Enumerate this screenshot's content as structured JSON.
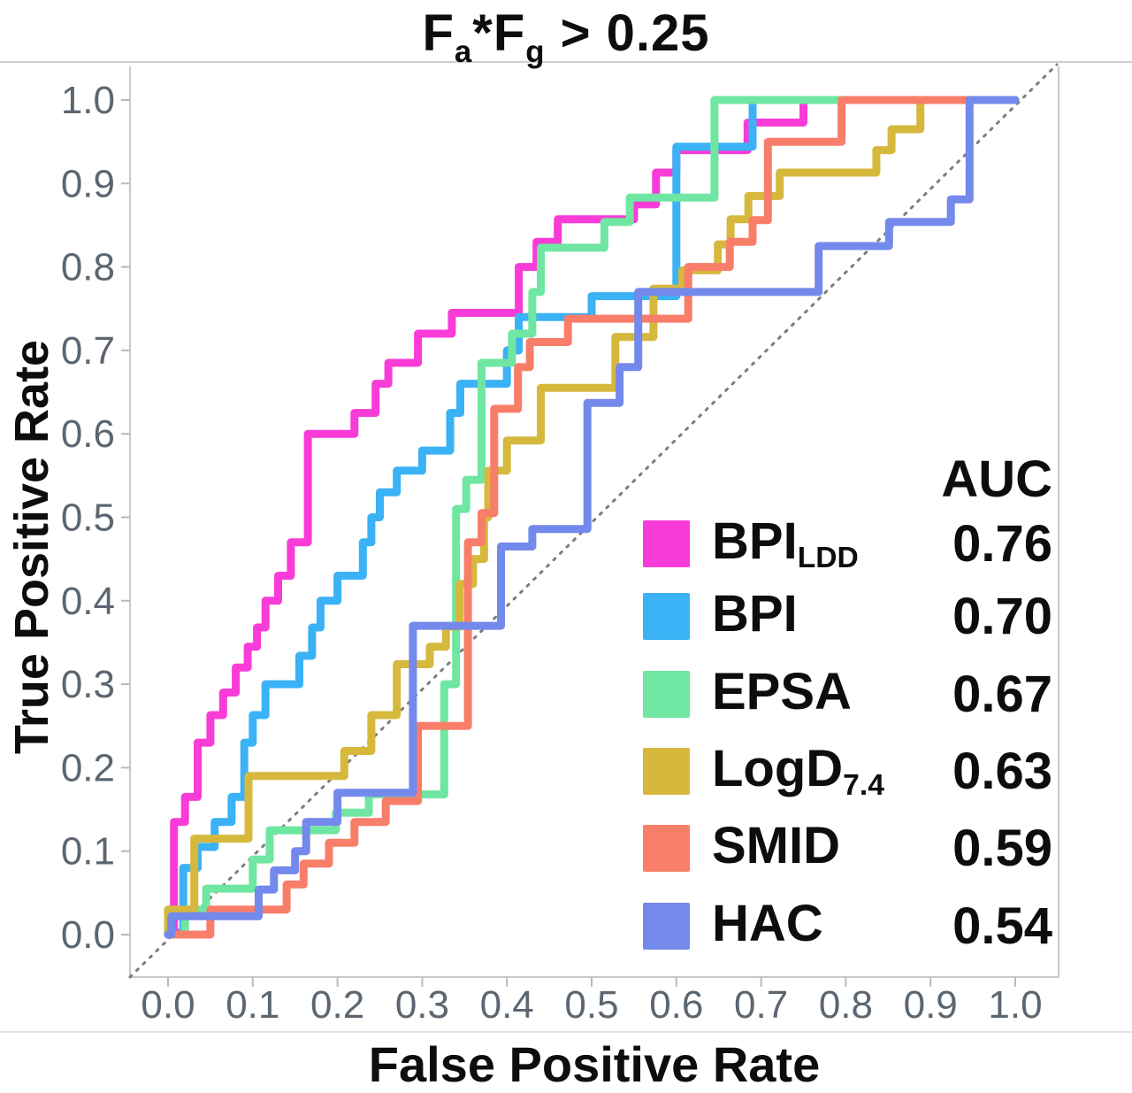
{
  "title_parts": {
    "t1": "F",
    "s1": "a",
    "t2": "*F",
    "s2": "g",
    "t3": " > 0.25"
  },
  "axes": {
    "x_label": "False Positive Rate",
    "y_label": "True Positive Rate"
  },
  "legend": {
    "header": "AUC",
    "entries": [
      {
        "label": "BPI",
        "sub": "LDD",
        "auc": "0.76"
      },
      {
        "label": "BPI",
        "auc": "0.70"
      },
      {
        "label": "EPSA",
        "auc": "0.67"
      },
      {
        "label": "LogD",
        "sub": "7.4",
        "auc": "0.63"
      },
      {
        "label": "SMID",
        "auc": "0.59"
      },
      {
        "label": "HAC",
        "auc": "0.54"
      }
    ]
  },
  "chart_data": {
    "type": "line",
    "subtype": "roc-step-curves",
    "title": "Fa*Fg > 0.25",
    "xlabel": "False Positive Rate",
    "ylabel": "True Positive Rate",
    "xlim": [
      0,
      1
    ],
    "ylim": [
      0,
      1
    ],
    "xticks": [
      "0.0",
      "0.1",
      "0.2",
      "0.3",
      "0.4",
      "0.5",
      "0.6",
      "0.7",
      "0.8",
      "0.9",
      "1.0"
    ],
    "yticks": [
      "0.0",
      "0.1",
      "0.2",
      "0.3",
      "0.4",
      "0.5",
      "0.6",
      "0.7",
      "0.8",
      "0.9",
      "1.0"
    ],
    "grid": false,
    "diagonal_reference": {
      "shown": true,
      "style": "dotted",
      "color": "#7d7d7d"
    },
    "legend_position": "lower right",
    "series": [
      {
        "name": "BPI_LDD",
        "key": "bpi-ldd",
        "auc": 0.76,
        "color": "#f93bd7",
        "points": [
          [
            0,
            0
          ],
          [
            0.007,
            0
          ],
          [
            0.007,
            0.135
          ],
          [
            0.02,
            0.135
          ],
          [
            0.02,
            0.165
          ],
          [
            0.035,
            0.165
          ],
          [
            0.035,
            0.23
          ],
          [
            0.05,
            0.23
          ],
          [
            0.05,
            0.263
          ],
          [
            0.065,
            0.263
          ],
          [
            0.065,
            0.29
          ],
          [
            0.08,
            0.29
          ],
          [
            0.08,
            0.32
          ],
          [
            0.094,
            0.32
          ],
          [
            0.094,
            0.345
          ],
          [
            0.105,
            0.345
          ],
          [
            0.105,
            0.368
          ],
          [
            0.115,
            0.368
          ],
          [
            0.115,
            0.4
          ],
          [
            0.13,
            0.4
          ],
          [
            0.13,
            0.43
          ],
          [
            0.145,
            0.43
          ],
          [
            0.145,
            0.47
          ],
          [
            0.165,
            0.47
          ],
          [
            0.165,
            0.6
          ],
          [
            0.22,
            0.6
          ],
          [
            0.22,
            0.625
          ],
          [
            0.245,
            0.625
          ],
          [
            0.245,
            0.66
          ],
          [
            0.26,
            0.66
          ],
          [
            0.26,
            0.685
          ],
          [
            0.295,
            0.685
          ],
          [
            0.295,
            0.72
          ],
          [
            0.335,
            0.72
          ],
          [
            0.335,
            0.745
          ],
          [
            0.414,
            0.745
          ],
          [
            0.414,
            0.8
          ],
          [
            0.435,
            0.8
          ],
          [
            0.435,
            0.83
          ],
          [
            0.46,
            0.83
          ],
          [
            0.46,
            0.857
          ],
          [
            0.55,
            0.857
          ],
          [
            0.55,
            0.875
          ],
          [
            0.576,
            0.875
          ],
          [
            0.576,
            0.913
          ],
          [
            0.6,
            0.913
          ],
          [
            0.6,
            0.94
          ],
          [
            0.684,
            0.94
          ],
          [
            0.684,
            0.973
          ],
          [
            0.75,
            0.973
          ],
          [
            0.75,
            1
          ],
          [
            1,
            1
          ]
        ]
      },
      {
        "name": "BPI",
        "key": "bpi",
        "auc": 0.7,
        "color": "#3ab2f5",
        "points": [
          [
            0,
            0
          ],
          [
            0.018,
            0
          ],
          [
            0.018,
            0.08
          ],
          [
            0.035,
            0.08
          ],
          [
            0.035,
            0.105
          ],
          [
            0.055,
            0.105
          ],
          [
            0.055,
            0.135
          ],
          [
            0.075,
            0.135
          ],
          [
            0.075,
            0.165
          ],
          [
            0.09,
            0.165
          ],
          [
            0.09,
            0.23
          ],
          [
            0.1,
            0.23
          ],
          [
            0.1,
            0.263
          ],
          [
            0.115,
            0.263
          ],
          [
            0.115,
            0.3
          ],
          [
            0.155,
            0.3
          ],
          [
            0.155,
            0.334
          ],
          [
            0.17,
            0.334
          ],
          [
            0.17,
            0.368
          ],
          [
            0.18,
            0.368
          ],
          [
            0.18,
            0.4
          ],
          [
            0.2,
            0.4
          ],
          [
            0.2,
            0.43
          ],
          [
            0.23,
            0.43
          ],
          [
            0.23,
            0.47
          ],
          [
            0.24,
            0.47
          ],
          [
            0.24,
            0.5
          ],
          [
            0.25,
            0.5
          ],
          [
            0.25,
            0.53
          ],
          [
            0.27,
            0.53
          ],
          [
            0.27,
            0.556
          ],
          [
            0.3,
            0.556
          ],
          [
            0.3,
            0.58
          ],
          [
            0.333,
            0.58
          ],
          [
            0.333,
            0.625
          ],
          [
            0.345,
            0.625
          ],
          [
            0.345,
            0.66
          ],
          [
            0.4,
            0.66
          ],
          [
            0.4,
            0.7
          ],
          [
            0.414,
            0.7
          ],
          [
            0.414,
            0.74
          ],
          [
            0.5,
            0.74
          ],
          [
            0.5,
            0.765
          ],
          [
            0.6,
            0.765
          ],
          [
            0.6,
            0.944
          ],
          [
            0.69,
            0.944
          ],
          [
            0.69,
            1
          ],
          [
            1,
            1
          ]
        ]
      },
      {
        "name": "EPSA",
        "key": "epsa",
        "auc": 0.67,
        "color": "#6fe6a1",
        "points": [
          [
            0,
            0
          ],
          [
            0.02,
            0
          ],
          [
            0.02,
            0.03
          ],
          [
            0.045,
            0.03
          ],
          [
            0.045,
            0.055
          ],
          [
            0.1,
            0.055
          ],
          [
            0.1,
            0.09
          ],
          [
            0.12,
            0.09
          ],
          [
            0.12,
            0.125
          ],
          [
            0.198,
            0.125
          ],
          [
            0.198,
            0.146
          ],
          [
            0.237,
            0.146
          ],
          [
            0.237,
            0.168
          ],
          [
            0.326,
            0.168
          ],
          [
            0.326,
            0.3
          ],
          [
            0.34,
            0.3
          ],
          [
            0.34,
            0.51
          ],
          [
            0.352,
            0.51
          ],
          [
            0.352,
            0.545
          ],
          [
            0.37,
            0.545
          ],
          [
            0.37,
            0.685
          ],
          [
            0.406,
            0.685
          ],
          [
            0.406,
            0.72
          ],
          [
            0.43,
            0.72
          ],
          [
            0.43,
            0.77
          ],
          [
            0.44,
            0.77
          ],
          [
            0.44,
            0.823
          ],
          [
            0.515,
            0.823
          ],
          [
            0.515,
            0.854
          ],
          [
            0.545,
            0.854
          ],
          [
            0.545,
            0.883
          ],
          [
            0.645,
            0.883
          ],
          [
            0.645,
            1
          ],
          [
            1,
            1
          ]
        ]
      },
      {
        "name": "LogD_7.4",
        "key": "logd-7-4",
        "auc": 0.63,
        "color": "#d6b83d",
        "points": [
          [
            0,
            0
          ],
          [
            0,
            0.03
          ],
          [
            0.031,
            0.03
          ],
          [
            0.031,
            0.115
          ],
          [
            0.095,
            0.115
          ],
          [
            0.095,
            0.19
          ],
          [
            0.208,
            0.19
          ],
          [
            0.208,
            0.22
          ],
          [
            0.24,
            0.22
          ],
          [
            0.24,
            0.263
          ],
          [
            0.27,
            0.263
          ],
          [
            0.27,
            0.324
          ],
          [
            0.309,
            0.324
          ],
          [
            0.309,
            0.345
          ],
          [
            0.328,
            0.345
          ],
          [
            0.328,
            0.369
          ],
          [
            0.344,
            0.369
          ],
          [
            0.344,
            0.42
          ],
          [
            0.36,
            0.42
          ],
          [
            0.36,
            0.45
          ],
          [
            0.373,
            0.45
          ],
          [
            0.373,
            0.5
          ],
          [
            0.378,
            0.5
          ],
          [
            0.378,
            0.556
          ],
          [
            0.4,
            0.556
          ],
          [
            0.4,
            0.592
          ],
          [
            0.44,
            0.592
          ],
          [
            0.44,
            0.655
          ],
          [
            0.528,
            0.655
          ],
          [
            0.528,
            0.716
          ],
          [
            0.573,
            0.716
          ],
          [
            0.573,
            0.774
          ],
          [
            0.607,
            0.774
          ],
          [
            0.607,
            0.796
          ],
          [
            0.649,
            0.796
          ],
          [
            0.649,
            0.827
          ],
          [
            0.664,
            0.827
          ],
          [
            0.664,
            0.857
          ],
          [
            0.685,
            0.857
          ],
          [
            0.685,
            0.885
          ],
          [
            0.722,
            0.885
          ],
          [
            0.722,
            0.913
          ],
          [
            0.836,
            0.913
          ],
          [
            0.836,
            0.94
          ],
          [
            0.854,
            0.94
          ],
          [
            0.854,
            0.965
          ],
          [
            0.888,
            0.965
          ],
          [
            0.888,
            1
          ],
          [
            1,
            1
          ]
        ]
      },
      {
        "name": "SMID",
        "key": "smid",
        "auc": 0.59,
        "color": "#f87e6a",
        "points": [
          [
            0,
            0
          ],
          [
            0.05,
            0
          ],
          [
            0.05,
            0.03
          ],
          [
            0.14,
            0.03
          ],
          [
            0.14,
            0.06
          ],
          [
            0.16,
            0.06
          ],
          [
            0.16,
            0.085
          ],
          [
            0.19,
            0.085
          ],
          [
            0.19,
            0.11
          ],
          [
            0.22,
            0.11
          ],
          [
            0.22,
            0.135
          ],
          [
            0.257,
            0.135
          ],
          [
            0.257,
            0.16
          ],
          [
            0.295,
            0.16
          ],
          [
            0.295,
            0.25
          ],
          [
            0.354,
            0.25
          ],
          [
            0.354,
            0.47
          ],
          [
            0.37,
            0.47
          ],
          [
            0.37,
            0.505
          ],
          [
            0.385,
            0.505
          ],
          [
            0.385,
            0.63
          ],
          [
            0.413,
            0.63
          ],
          [
            0.413,
            0.68
          ],
          [
            0.427,
            0.68
          ],
          [
            0.427,
            0.71
          ],
          [
            0.472,
            0.71
          ],
          [
            0.472,
            0.738
          ],
          [
            0.614,
            0.738
          ],
          [
            0.614,
            0.8
          ],
          [
            0.663,
            0.8
          ],
          [
            0.663,
            0.83
          ],
          [
            0.69,
            0.83
          ],
          [
            0.69,
            0.856
          ],
          [
            0.708,
            0.856
          ],
          [
            0.708,
            0.95
          ],
          [
            0.795,
            0.95
          ],
          [
            0.795,
            1
          ],
          [
            1,
            1
          ]
        ]
      },
      {
        "name": "HAC",
        "key": "hac",
        "auc": 0.54,
        "color": "#7389eb",
        "points": [
          [
            0,
            0
          ],
          [
            0.004,
            0
          ],
          [
            0.004,
            0.022
          ],
          [
            0.107,
            0.022
          ],
          [
            0.107,
            0.054
          ],
          [
            0.125,
            0.054
          ],
          [
            0.125,
            0.077
          ],
          [
            0.15,
            0.077
          ],
          [
            0.15,
            0.1
          ],
          [
            0.163,
            0.1
          ],
          [
            0.163,
            0.135
          ],
          [
            0.2,
            0.135
          ],
          [
            0.2,
            0.17
          ],
          [
            0.289,
            0.17
          ],
          [
            0.289,
            0.37
          ],
          [
            0.393,
            0.37
          ],
          [
            0.393,
            0.465
          ],
          [
            0.43,
            0.465
          ],
          [
            0.43,
            0.486
          ],
          [
            0.495,
            0.486
          ],
          [
            0.495,
            0.637
          ],
          [
            0.533,
            0.637
          ],
          [
            0.533,
            0.68
          ],
          [
            0.555,
            0.68
          ],
          [
            0.555,
            0.77
          ],
          [
            0.768,
            0.77
          ],
          [
            0.768,
            0.825
          ],
          [
            0.851,
            0.825
          ],
          [
            0.851,
            0.854
          ],
          [
            0.924,
            0.854
          ],
          [
            0.924,
            0.881
          ],
          [
            0.946,
            0.881
          ],
          [
            0.946,
            1
          ],
          [
            1,
            1
          ]
        ]
      }
    ]
  }
}
